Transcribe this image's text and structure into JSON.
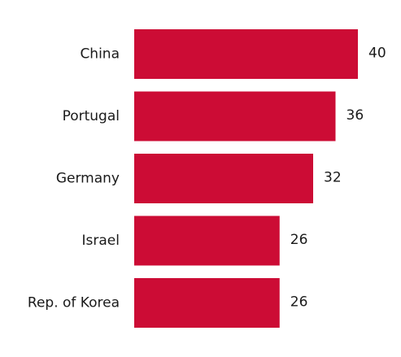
{
  "chart_data": {
    "type": "bar",
    "orientation": "horizontal",
    "categories": [
      "China",
      "Portugal",
      "Germany",
      "Israel",
      "Rep. of Korea"
    ],
    "values": [
      40,
      36,
      32,
      26,
      26
    ],
    "color": "#cc0c35"
  }
}
